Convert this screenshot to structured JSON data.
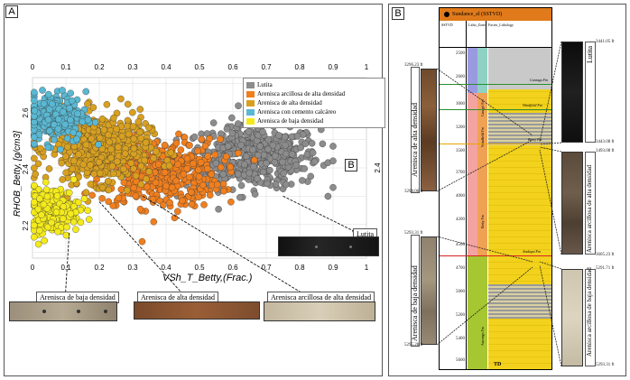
{
  "panels": {
    "a_letter": "A",
    "b_letter": "B"
  },
  "chart_data": {
    "type": "scatter",
    "xlabel": "VSh_T_Betty,(Frac.)",
    "ylabel": "RHOB_Betty, [g/cm3]",
    "xlim": [
      0,
      1
    ],
    "ylim": [
      2.08,
      2.72
    ],
    "x_ticks": [
      "0",
      "0.1",
      "0.2",
      "0.3",
      "0.4",
      "0.5",
      "0.6",
      "0.7",
      "0.8",
      "0.9",
      "1"
    ],
    "y_ticks_left": [
      "2.2",
      "2.4",
      "2.6"
    ],
    "y_ticks_right": [
      "2.4",
      "2.6"
    ],
    "grid": true,
    "legend_position": "top-right",
    "series": [
      {
        "name": "Lutita",
        "color": "#8c8c8c",
        "center": [
          0.66,
          2.44
        ],
        "spread": [
          0.1,
          0.055
        ],
        "count": 520
      },
      {
        "name": "Arenisca arcillosa de alta densidad",
        "color": "#f07f1e",
        "center": [
          0.38,
          2.38
        ],
        "spread": [
          0.09,
          0.06
        ],
        "count": 460
      },
      {
        "name": "Arenisca de alta densidad",
        "color": "#d8a020",
        "center": [
          0.2,
          2.47
        ],
        "spread": [
          0.075,
          0.06
        ],
        "count": 560
      },
      {
        "name": "Arenisca con cemento calcáreo",
        "color": "#5ab8d2",
        "center": [
          0.07,
          2.58
        ],
        "spread": [
          0.045,
          0.045
        ],
        "count": 260
      },
      {
        "name": "Arenisca de baja densidad",
        "color": "#f4ea1c",
        "center": [
          0.06,
          2.25
        ],
        "spread": [
          0.04,
          0.04
        ],
        "count": 220
      }
    ],
    "inset_letter": "B"
  },
  "photo_labels": {
    "baja": "Arenisca de baja densidad",
    "alta": "Arenisca de alta densidad",
    "arcillosa": "Arenisca arcillosa de alta densidad",
    "lutita": "Lutita"
  },
  "well_column": {
    "title": "Sundance_el (SSTVD)",
    "header_cols": [
      "SSTVD",
      "Litho_Zone",
      "Facies_Lithology"
    ],
    "depth_ticks": [
      "2500",
      "2600",
      "3000",
      "3200",
      "3500",
      "3700",
      "4000",
      "4200",
      "4500",
      "4700",
      "5000",
      "5200",
      "5400",
      "5600"
    ],
    "formations": [
      "Cantaga Fm",
      "Windfield Fm",
      "Benty Fm",
      "Andaqui Fm"
    ],
    "zone_labels": [
      "Canagó Fm",
      "Windfield Fm",
      "Betty Fm",
      "Ancongo Fm"
    ],
    "bottom_label": "TD"
  },
  "left_core_labels": {
    "top_label": "Arenisca de alta densidad",
    "top_depths": [
      "3296.23 ft",
      "3298.06 ft"
    ],
    "bottom_label": "Arenisca de baja densidad",
    "bottom_depths": [
      "5293.31 ft",
      "5295.28 ft"
    ]
  },
  "right_core_labels": {
    "lutita": "Lutita",
    "lutita_depths": [
      "3441.05 ft",
      "3443.08 ft"
    ],
    "alta": "Arenisca arcillosa de alta densidad",
    "alta_depths": [
      "3493.08 ft",
      "3605.23 ft"
    ],
    "baja": "Arenisca arcillosa de baja densidad",
    "baja_depths": [
      "5291.71 ft",
      "5293.31 ft"
    ]
  }
}
